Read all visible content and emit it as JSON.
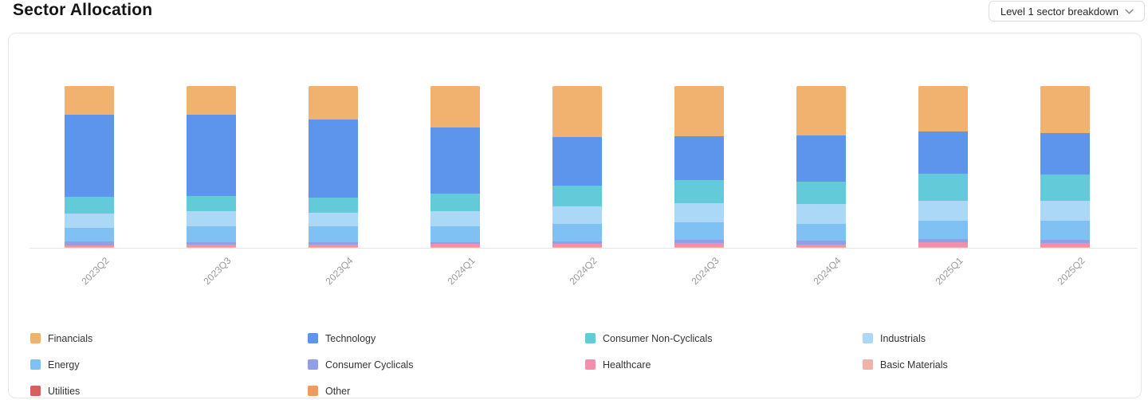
{
  "header": {
    "title": "Sector Allocation",
    "breakdown_selector": {
      "label": "Level 1 sector breakdown",
      "icon": "chevron-down-icon"
    }
  },
  "chart_data": {
    "type": "bar",
    "stacked": true,
    "unit": "percent",
    "title": "Sector Allocation",
    "xlabel": "",
    "ylabel": "",
    "ylim": [
      0,
      100
    ],
    "grid": false,
    "legend_position": "bottom",
    "axis_label_rotation": 45,
    "categories": [
      "2023Q2",
      "2023Q3",
      "2023Q4",
      "2024Q1",
      "2024Q2",
      "2024Q3",
      "2024Q4",
      "2025Q1",
      "2025Q2"
    ],
    "series": [
      {
        "name": "Financials",
        "color": "#F0B26E",
        "values": [
          17.5,
          17.8,
          20.7,
          25.7,
          31.4,
          30.9,
          30.4,
          28.1,
          28.9
        ]
      },
      {
        "name": "Technology",
        "color": "#5E95EC",
        "values": [
          50.8,
          50.0,
          48.0,
          40.7,
          30.1,
          27.1,
          28.5,
          26.1,
          25.8
        ]
      },
      {
        "name": "Consumer Non-Cyclicals",
        "color": "#63CADA",
        "values": [
          10.7,
          9.5,
          9.4,
          10.7,
          12.8,
          14.5,
          14.1,
          16.5,
          16.4
        ]
      },
      {
        "name": "Industrials",
        "color": "#ABD8F7",
        "values": [
          8.7,
          9.5,
          8.7,
          9.6,
          10.9,
          11.8,
          12.2,
          12.3,
          12.3
        ]
      },
      {
        "name": "Energy",
        "color": "#7FC1F2",
        "values": [
          8.4,
          9.9,
          9.9,
          9.7,
          10.9,
          10.7,
          10.2,
          11.5,
          11.5
        ]
      },
      {
        "name": "Consumer Cyclicals",
        "color": "#919FE8",
        "values": [
          2.3,
          1.3,
          1.3,
          1.3,
          1.7,
          2.0,
          2.5,
          2.1,
          2.0
        ]
      },
      {
        "name": "Healthcare",
        "color": "#F090AD",
        "values": [
          1.2,
          1.5,
          1.5,
          1.8,
          1.7,
          2.4,
          1.5,
          2.7,
          2.4
        ]
      },
      {
        "name": "Basic Materials",
        "color": "#F0B3AB",
        "values": [
          0.3,
          0.4,
          0.4,
          0.4,
          0.4,
          0.5,
          0.5,
          0.5,
          0.5
        ]
      },
      {
        "name": "Utilities",
        "color": "#D95F5F",
        "values": [
          0.1,
          0.1,
          0.1,
          0.1,
          0.1,
          0.1,
          0.1,
          0.2,
          0.2
        ]
      },
      {
        "name": "Other",
        "color": "#EE9B61",
        "values": [
          0.0,
          0.0,
          0.0,
          0.0,
          0.0,
          0.0,
          0.0,
          0.0,
          0.0
        ]
      }
    ]
  }
}
